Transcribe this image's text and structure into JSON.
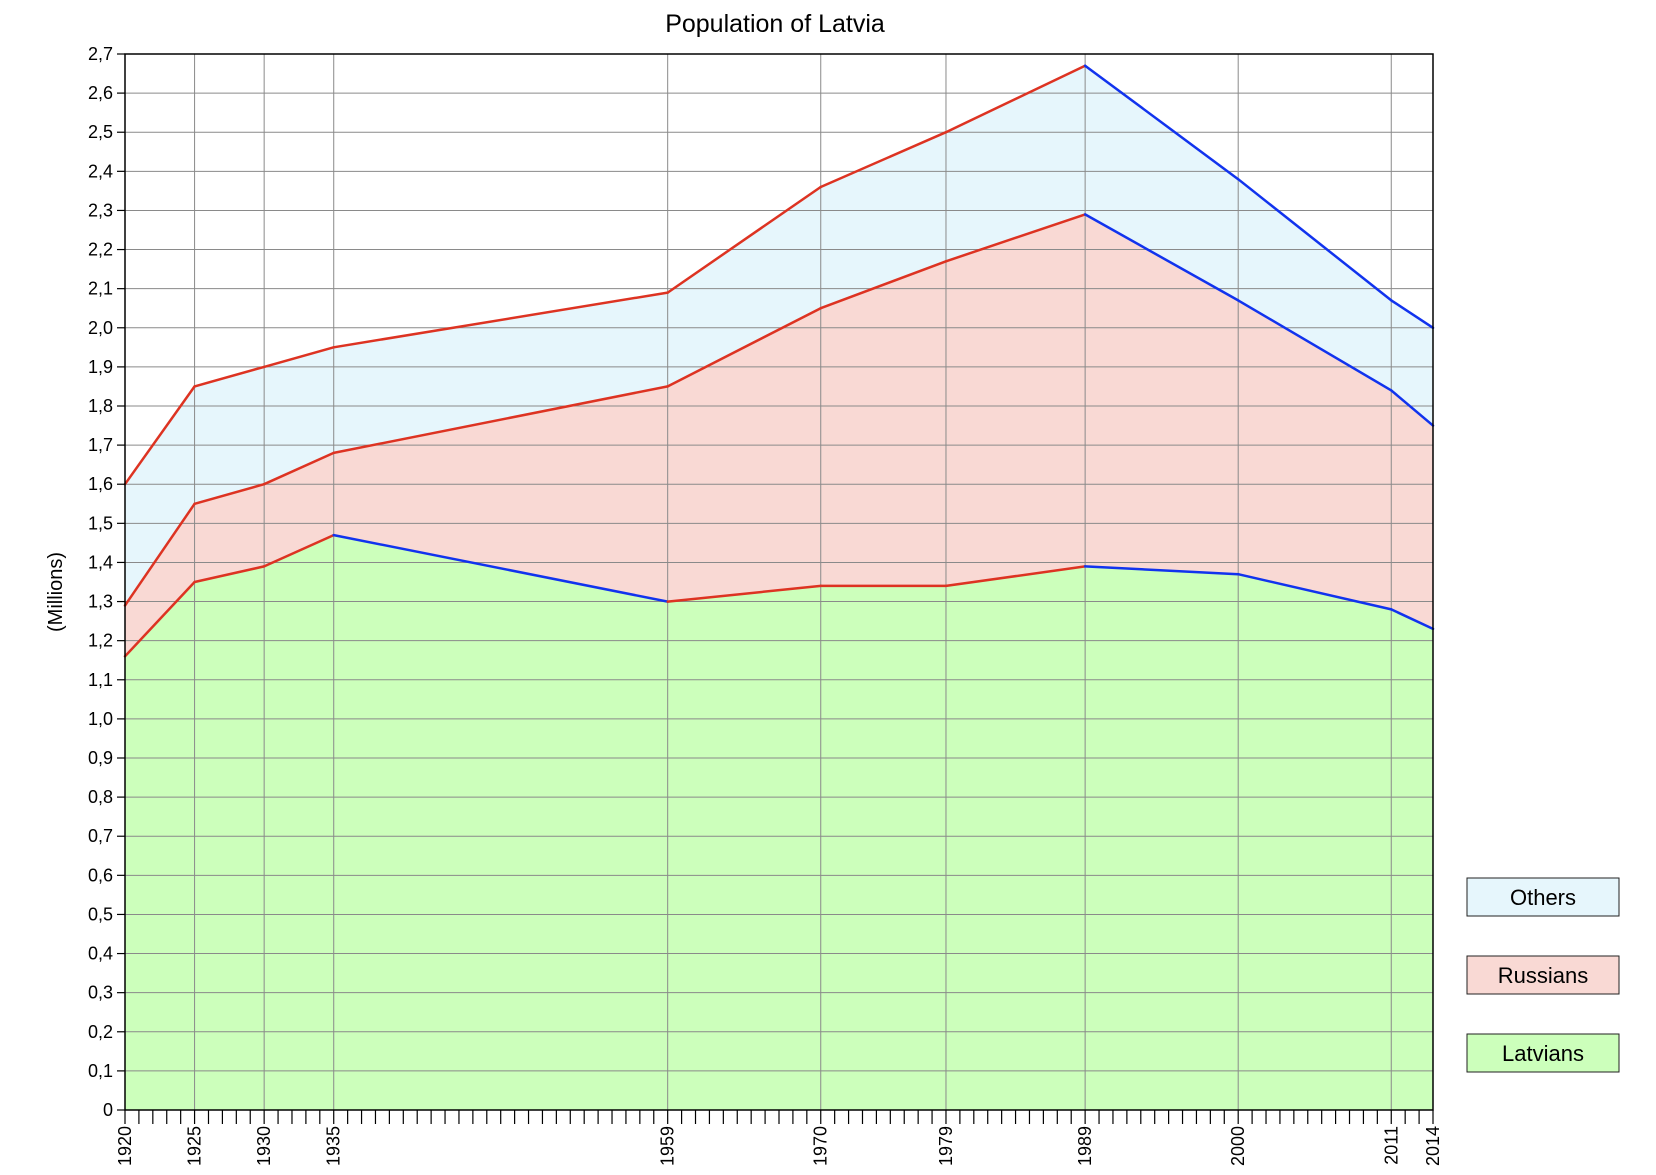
{
  "chart_data": {
    "type": "area",
    "stacked": true,
    "title": "Population of Latvia",
    "ylabel": "(Millions)",
    "xlabel": "",
    "x": [
      1920,
      1925,
      1930,
      1935,
      1959,
      1970,
      1979,
      1989,
      2000,
      2011,
      2014
    ],
    "x_tick_labels": [
      "1920",
      "1925",
      "1930",
      "1935",
      "1959",
      "1970",
      "1979",
      "1989",
      "2000",
      "2011",
      "2014"
    ],
    "xlim": [
      1920,
      2014
    ],
    "ylim": [
      0,
      2.7
    ],
    "y_tick_labels": [
      "0",
      "0,1",
      "0,2",
      "0,3",
      "0,4",
      "0,5",
      "0,6",
      "0,7",
      "0,8",
      "0,9",
      "1,0",
      "1,1",
      "1,2",
      "1,3",
      "1,4",
      "1,5",
      "1,6",
      "1,7",
      "1,8",
      "1,9",
      "2,0",
      "2,1",
      "2,2",
      "2,3",
      "2,4",
      "2,5",
      "2,6",
      "2,7"
    ],
    "grid": true,
    "legend_position": "bottom-right",
    "series_boundaries": [
      {
        "name": "Latvians",
        "values": [
          1.16,
          1.35,
          1.39,
          1.47,
          1.3,
          1.34,
          1.34,
          1.39,
          1.37,
          1.28,
          1.23
        ]
      },
      {
        "name": "Russians",
        "values": [
          1.29,
          1.55,
          1.6,
          1.68,
          1.85,
          2.05,
          2.17,
          2.29,
          2.07,
          1.84,
          1.75
        ]
      },
      {
        "name": "Others",
        "values": [
          1.6,
          1.85,
          1.9,
          1.95,
          2.09,
          2.36,
          2.5,
          2.67,
          2.38,
          2.07,
          2.0
        ]
      }
    ],
    "series": [
      {
        "name": "Latvians",
        "values": [
          1.16,
          1.35,
          1.39,
          1.47,
          1.3,
          1.34,
          1.34,
          1.39,
          1.37,
          1.28,
          1.23
        ],
        "fill": "#ccffbb"
      },
      {
        "name": "Russians",
        "values": [
          0.13,
          0.2,
          0.21,
          0.21,
          0.55,
          0.71,
          0.83,
          0.9,
          0.7,
          0.56,
          0.52
        ],
        "fill": "#f9d9d4"
      },
      {
        "name": "Others",
        "values": [
          0.31,
          0.3,
          0.3,
          0.27,
          0.24,
          0.31,
          0.33,
          0.38,
          0.31,
          0.23,
          0.25
        ],
        "fill": "#e6f6fc"
      }
    ],
    "line_colors": [
      "#1133ee",
      "#dd3322"
    ],
    "legend": [
      "Others",
      "Russians",
      "Latvians"
    ]
  }
}
